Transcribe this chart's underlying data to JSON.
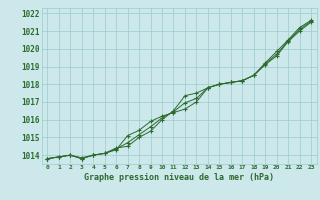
{
  "title": "Graphe pression niveau de la mer (hPa)",
  "bg_color": "#cce8ea",
  "grid_color": "#99cccc",
  "line_color": "#2d6a2d",
  "marker_color": "#2d6a2d",
  "x_labels": [
    "0",
    "1",
    "2",
    "3",
    "4",
    "5",
    "6",
    "7",
    "8",
    "9",
    "10",
    "11",
    "12",
    "13",
    "14",
    "15",
    "16",
    "17",
    "18",
    "19",
    "20",
    "21",
    "22",
    "23"
  ],
  "ylim": [
    1013.5,
    1022.3
  ],
  "yticks": [
    1014,
    1015,
    1016,
    1017,
    1018,
    1019,
    1020,
    1021,
    1022
  ],
  "series": [
    [
      1013.8,
      1013.9,
      1014.0,
      1013.85,
      1014.0,
      1014.1,
      1014.3,
      1015.1,
      1015.4,
      1015.9,
      1016.2,
      1016.4,
      1016.6,
      1017.0,
      1017.8,
      1018.0,
      1018.1,
      1018.2,
      1018.5,
      1019.1,
      1019.6,
      1020.4,
      1021.0,
      1021.5
    ],
    [
      1013.8,
      1013.9,
      1014.0,
      1013.8,
      1014.0,
      1014.1,
      1014.4,
      1014.5,
      1015.0,
      1015.35,
      1016.0,
      1016.5,
      1017.35,
      1017.5,
      1017.8,
      1018.0,
      1018.1,
      1018.2,
      1018.5,
      1019.2,
      1019.85,
      1020.5,
      1021.2,
      1021.6
    ],
    [
      1013.8,
      1013.9,
      1014.0,
      1013.8,
      1014.0,
      1014.1,
      1014.35,
      1014.7,
      1015.15,
      1015.6,
      1016.1,
      1016.45,
      1016.95,
      1017.2,
      1017.8,
      1018.0,
      1018.1,
      1018.2,
      1018.5,
      1019.15,
      1019.7,
      1020.45,
      1021.1,
      1021.55
    ]
  ]
}
